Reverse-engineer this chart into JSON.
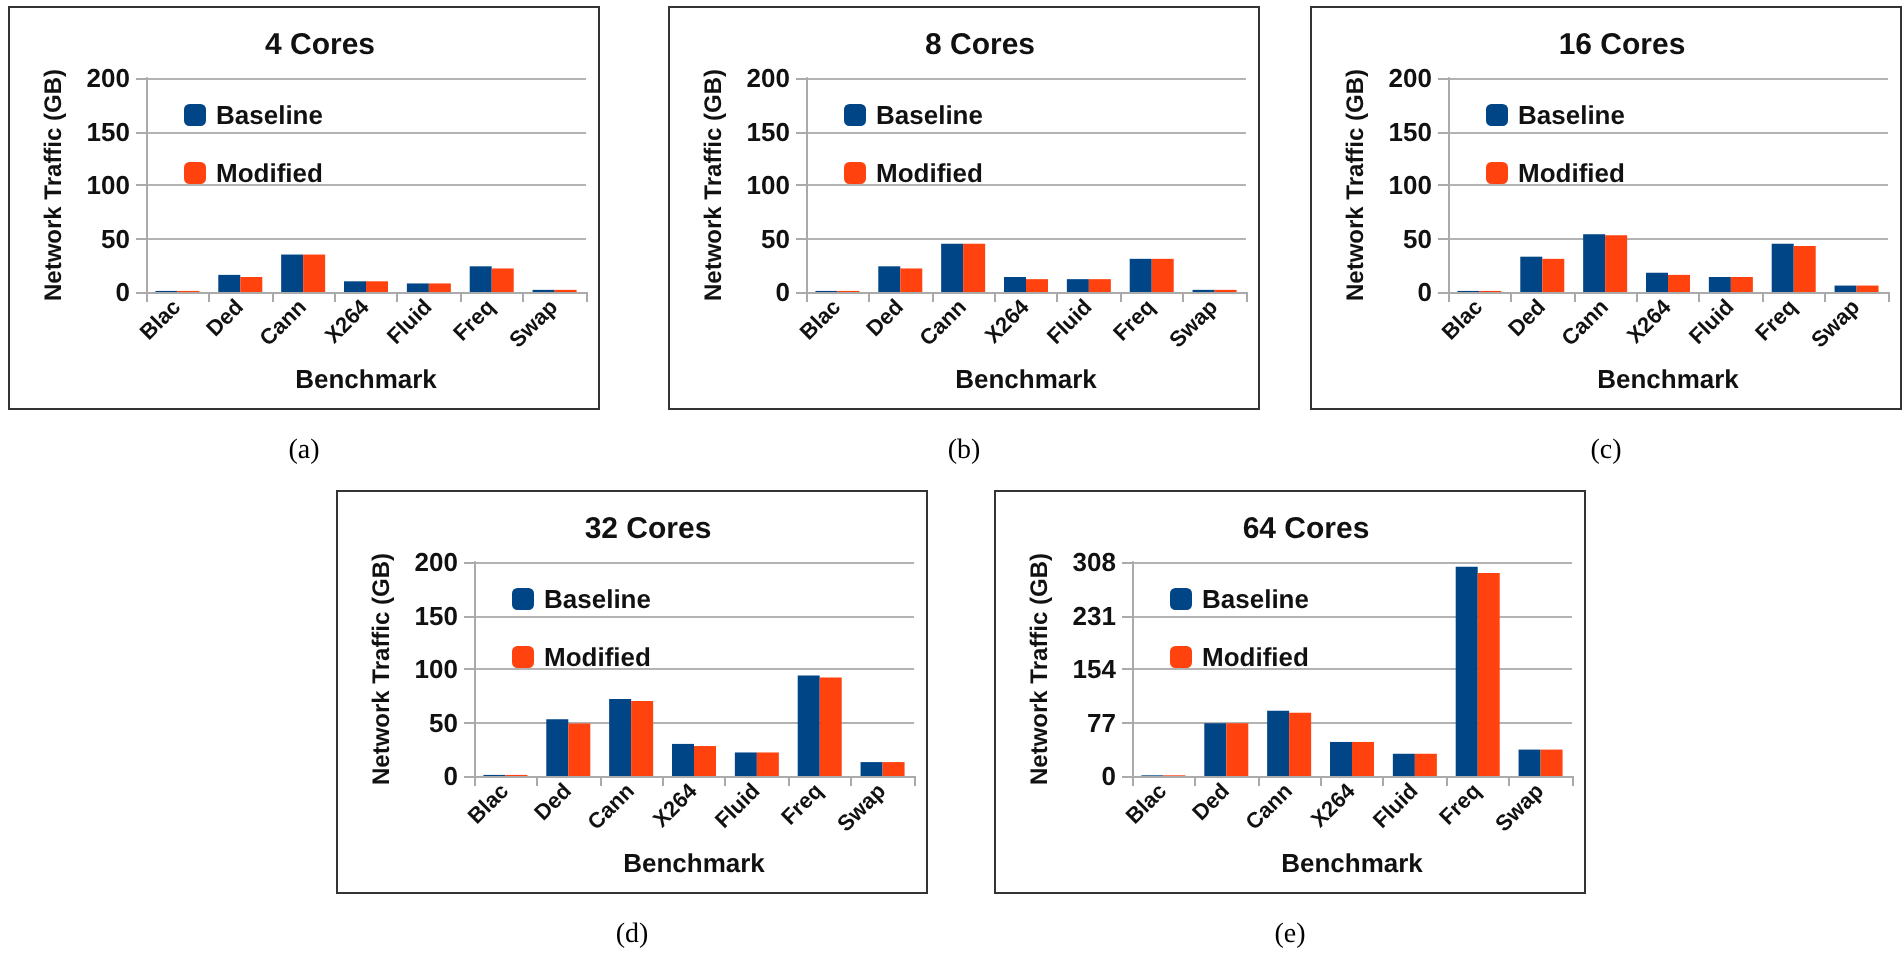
{
  "chart_data": [
    {
      "type": "bar",
      "title": "4 Cores",
      "xlabel": "Benchmark",
      "ylabel": "Network Traffic (GB)",
      "categories": [
        "Blac",
        "Ded",
        "Cann",
        "X264",
        "Fluid",
        "Freq",
        "Swap"
      ],
      "series": [
        {
          "name": "Baseline",
          "color": "#004586",
          "values": [
            1,
            16,
            35,
            10,
            8,
            24,
            2
          ]
        },
        {
          "name": "Modified",
          "color": "#ff420e",
          "values": [
            1,
            14,
            35,
            10,
            8,
            22,
            2
          ]
        }
      ],
      "ylim": [
        0,
        200
      ],
      "yticks": [
        0,
        50,
        100,
        150,
        200
      ],
      "grid": "y",
      "legend": "top left",
      "annotations": [
        "(a)"
      ]
    },
    {
      "type": "bar",
      "title": "8 Cores",
      "xlabel": "Benchmark",
      "ylabel": "Network Traffic (GB)",
      "categories": [
        "Blac",
        "Ded",
        "Cann",
        "X264",
        "Fluid",
        "Freq",
        "Swap"
      ],
      "series": [
        {
          "name": "Baseline",
          "color": "#004586",
          "values": [
            1,
            24,
            45,
            14,
            12,
            31,
            2
          ]
        },
        {
          "name": "Modified",
          "color": "#ff420e",
          "values": [
            1,
            22,
            45,
            12,
            12,
            31,
            2
          ]
        }
      ],
      "ylim": [
        0,
        200
      ],
      "yticks": [
        0,
        50,
        100,
        150,
        200
      ],
      "grid": "y",
      "legend": "top left",
      "annotations": [
        "(b)"
      ]
    },
    {
      "type": "bar",
      "title": "16 Cores",
      "xlabel": "Benchmark",
      "ylabel": "Network Traffic (GB)",
      "categories": [
        "Blac",
        "Ded",
        "Cann",
        "X264",
        "Fluid",
        "Freq",
        "Swap"
      ],
      "series": [
        {
          "name": "Baseline",
          "color": "#004586",
          "values": [
            1,
            33,
            54,
            18,
            14,
            45,
            6
          ]
        },
        {
          "name": "Modified",
          "color": "#ff420e",
          "values": [
            1,
            31,
            53,
            16,
            14,
            43,
            6
          ]
        }
      ],
      "ylim": [
        0,
        200
      ],
      "yticks": [
        0,
        50,
        100,
        150,
        200
      ],
      "grid": "y",
      "legend": "top left",
      "annotations": [
        "(c)"
      ]
    },
    {
      "type": "bar",
      "title": "32 Cores",
      "xlabel": "Benchmark",
      "ylabel": "Network Traffic (GB)",
      "categories": [
        "Blac",
        "Ded",
        "Cann",
        "X264",
        "Fluid",
        "Freq",
        "Swap"
      ],
      "series": [
        {
          "name": "Baseline",
          "color": "#004586",
          "values": [
            1,
            53,
            72,
            30,
            22,
            94,
            13
          ]
        },
        {
          "name": "Modified",
          "color": "#ff420e",
          "values": [
            1,
            49,
            70,
            28,
            22,
            92,
            13
          ]
        }
      ],
      "ylim": [
        0,
        200
      ],
      "yticks": [
        0,
        50,
        100,
        150,
        200
      ],
      "grid": "y",
      "legend": "top left",
      "annotations": [
        "(d)"
      ]
    },
    {
      "type": "bar",
      "title": "64 Cores",
      "xlabel": "Benchmark",
      "ylabel": "Network Traffic (GB)",
      "categories": [
        "Blac",
        "Ded",
        "Cann",
        "X264",
        "Fluid",
        "Freq",
        "Swap"
      ],
      "series": [
        {
          "name": "Baseline",
          "color": "#004586",
          "values": [
            1,
            76,
            94,
            49,
            32,
            301,
            38
          ]
        },
        {
          "name": "Modified",
          "color": "#ff420e",
          "values": [
            1,
            76,
            91,
            49,
            32,
            292,
            38
          ]
        }
      ],
      "ylim": [
        0,
        308
      ],
      "yticks": [
        0,
        77,
        154,
        231,
        308
      ],
      "grid": "y",
      "legend": "top left",
      "annotations": [
        "(e)"
      ]
    }
  ]
}
